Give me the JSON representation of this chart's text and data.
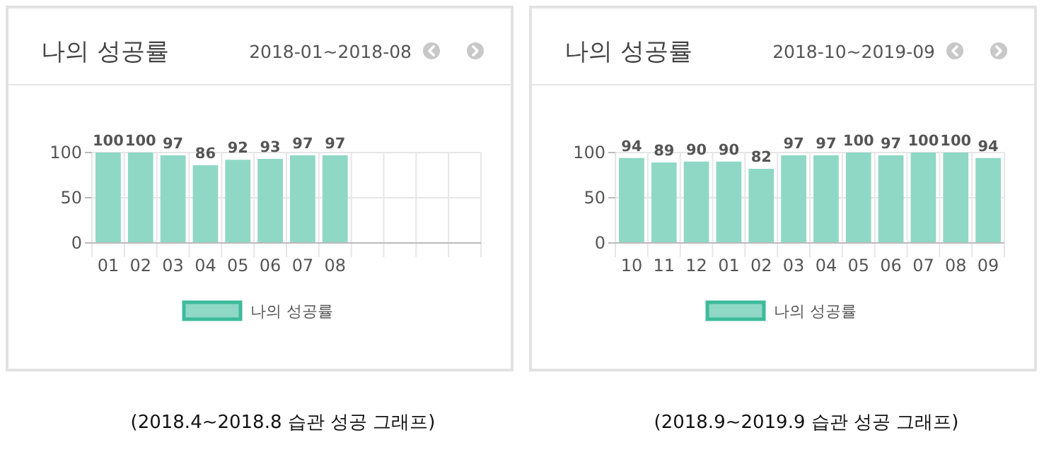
{
  "chart_data": [
    {
      "type": "bar",
      "title": "나의 성공률",
      "subtitle": "2018-01~2018-08",
      "categories": [
        "01",
        "02",
        "03",
        "04",
        "05",
        "06",
        "07",
        "08",
        null,
        null,
        null,
        null
      ],
      "series": [
        {
          "name": "나의 성공률",
          "color": "#8fd8c5",
          "values": [
            100,
            100,
            97,
            86,
            92,
            93,
            97,
            97,
            null,
            null,
            null,
            null
          ]
        }
      ],
      "ylim": [
        0,
        100
      ],
      "yticks": [
        0,
        50,
        100
      ],
      "grid": true,
      "legend": "bottom",
      "data_labels": true,
      "annotations": [
        "(2018.4~2018.8 습관 성공 그래프)"
      ]
    },
    {
      "type": "bar",
      "title": "나의 성공률",
      "subtitle": "2018-10~2019-09",
      "categories": [
        "10",
        "11",
        "12",
        "01",
        "02",
        "03",
        "04",
        "05",
        "06",
        "07",
        "08",
        "09"
      ],
      "series": [
        {
          "name": "나의 성공률",
          "color": "#8fd8c5",
          "values": [
            94,
            89,
            90,
            90,
            82,
            97,
            97,
            100,
            97,
            100,
            100,
            94
          ]
        }
      ],
      "ylim": [
        0,
        100
      ],
      "yticks": [
        0,
        50,
        100
      ],
      "grid": true,
      "legend": "bottom",
      "data_labels": true,
      "annotations": [
        "(2018.9~2019.9 습관 성공 그래프)"
      ]
    }
  ]
}
